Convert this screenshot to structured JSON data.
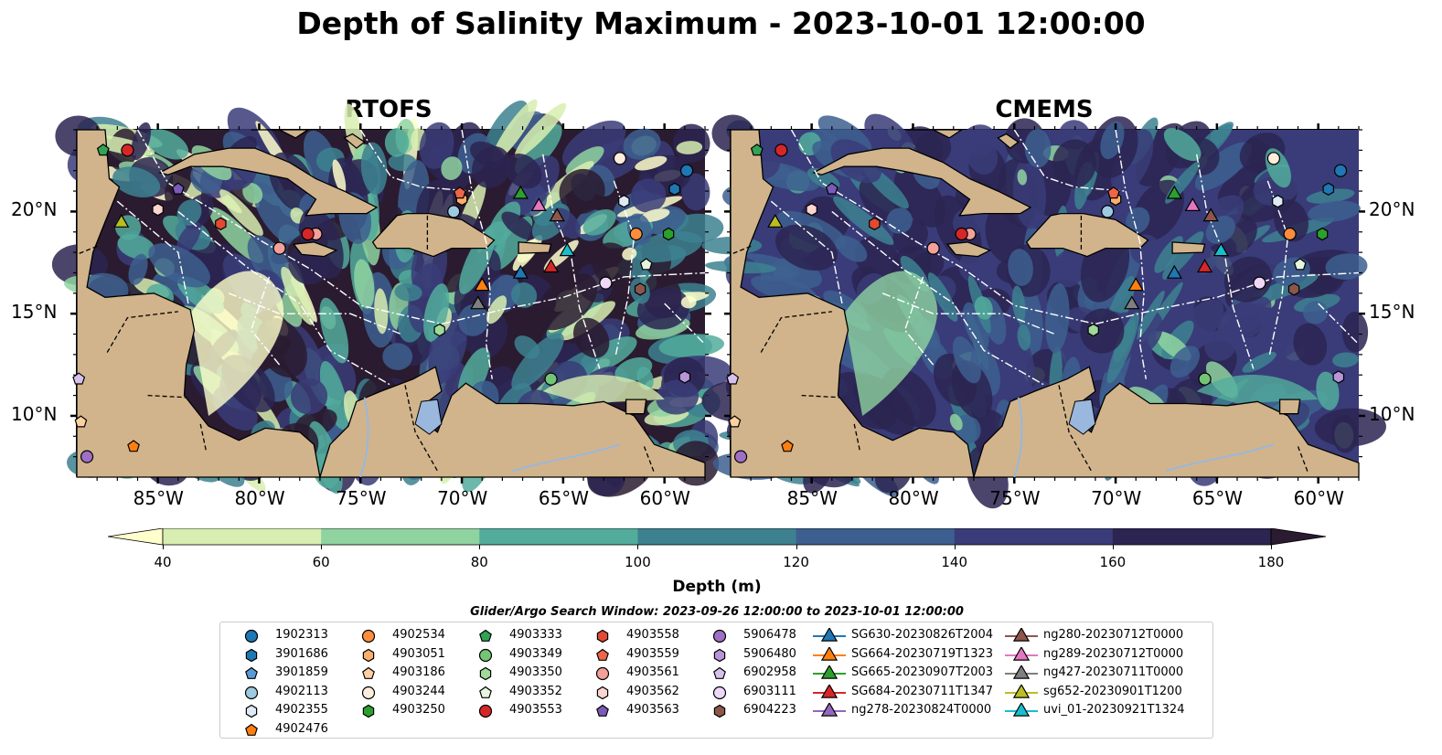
{
  "title": "Depth of Salinity Maximum - 2023-10-01 12:00:00",
  "panels": [
    {
      "name": "RTOFS",
      "lon_labels": [
        "85°W",
        "80°W",
        "75°W",
        "70°W",
        "65°W",
        "60°W"
      ],
      "lat_labels": [
        "20°N",
        "15°N",
        "10°N"
      ],
      "lat_side": "left"
    },
    {
      "name": "CMEMS",
      "lon_labels": [
        "85°W",
        "80°W",
        "75°W",
        "70°W",
        "65°W",
        "60°W"
      ],
      "lat_labels": [
        "20°N",
        "15°N",
        "10°N"
      ],
      "lat_side": "right"
    }
  ],
  "map_extent": {
    "lon": [
      -89,
      -58
    ],
    "lat": [
      7,
      24
    ]
  },
  "colorbar": {
    "label": "Depth (m)",
    "ticks": [
      "40",
      "60",
      "80",
      "100",
      "120",
      "140",
      "160",
      "180"
    ],
    "bins": [
      {
        "range": [
          40,
          60
        ],
        "color": "#d8eeb0"
      },
      {
        "range": [
          60,
          80
        ],
        "color": "#8fd3a0"
      },
      {
        "range": [
          80,
          100
        ],
        "color": "#52ac9c"
      },
      {
        "range": [
          100,
          120
        ],
        "color": "#3d8190"
      },
      {
        "range": [
          120,
          140
        ],
        "color": "#3d5f8f"
      },
      {
        "range": [
          140,
          160
        ],
        "color": "#393c78"
      },
      {
        "range": [
          160,
          180
        ],
        "color": "#2c2551"
      }
    ],
    "under_color": "#ffffcc",
    "over_color": "#2a1b30",
    "extend": "both"
  },
  "land_color": "#d1b48c",
  "legend": {
    "title": "Glider/Argo Search Window: 2023-09-26 12:00:00 to 2023-10-01 12:00:00",
    "columns": [
      [
        {
          "label": "1902313",
          "marker": "circle",
          "color": "#1f77b4"
        },
        {
          "label": "3901686",
          "marker": "hexagon",
          "color": "#1f77b4"
        },
        {
          "label": "3901859",
          "marker": "pentagon",
          "color": "#5b9bd5"
        },
        {
          "label": "4902113",
          "marker": "circle",
          "color": "#9ecae1"
        },
        {
          "label": "4902355",
          "marker": "hexagon",
          "color": "#deebf7"
        },
        {
          "label": "4902476",
          "marker": "pentagon",
          "color": "#ff7f0e"
        }
      ],
      [
        {
          "label": "4902534",
          "marker": "circle",
          "color": "#fd8d3c"
        },
        {
          "label": "4903051",
          "marker": "hexagon",
          "color": "#fdae6b"
        },
        {
          "label": "4903186",
          "marker": "pentagon",
          "color": "#fdd0a2"
        },
        {
          "label": "4903244",
          "marker": "circle",
          "color": "#feeddd"
        },
        {
          "label": "4903250",
          "marker": "hexagon",
          "color": "#2ca02c"
        }
      ],
      [
        {
          "label": "4903333",
          "marker": "pentagon",
          "color": "#31a354"
        },
        {
          "label": "4903349",
          "marker": "circle",
          "color": "#74c476"
        },
        {
          "label": "4903350",
          "marker": "hexagon",
          "color": "#a1d99b"
        },
        {
          "label": "4903352",
          "marker": "pentagon",
          "color": "#e5f5e0"
        },
        {
          "label": "4903553",
          "marker": "circle",
          "color": "#d62728"
        }
      ],
      [
        {
          "label": "4903558",
          "marker": "hexagon",
          "color": "#e34a33"
        },
        {
          "label": "4903559",
          "marker": "pentagon",
          "color": "#ef6548"
        },
        {
          "label": "4903561",
          "marker": "circle",
          "color": "#f4a09a"
        },
        {
          "label": "4903562",
          "marker": "hexagon",
          "color": "#fdd5d0"
        },
        {
          "label": "4903563",
          "marker": "pentagon",
          "color": "#7b5ab8"
        }
      ],
      [
        {
          "label": "5906478",
          "marker": "circle",
          "color": "#9e6fc4"
        },
        {
          "label": "5906480",
          "marker": "hexagon",
          "color": "#b894d9"
        },
        {
          "label": "6902958",
          "marker": "pentagon",
          "color": "#d5c1ec"
        },
        {
          "label": "6903111",
          "marker": "circle",
          "color": "#eed7f7"
        },
        {
          "label": "6904223",
          "marker": "hexagon",
          "color": "#8c564b"
        }
      ],
      [
        {
          "label": "SG630-20230826T2004",
          "marker": "triangle",
          "color": "#1f77b4"
        },
        {
          "label": "SG664-20230719T1323",
          "marker": "triangle",
          "color": "#ff7f0e"
        },
        {
          "label": "SG665-20230907T2003",
          "marker": "triangle",
          "color": "#2ca02c"
        },
        {
          "label": "SG684-20230711T1347",
          "marker": "triangle",
          "color": "#d62728"
        },
        {
          "label": "ng278-20230824T0000",
          "marker": "triangle",
          "color": "#9467bd"
        }
      ],
      [
        {
          "label": "ng280-20230712T0000",
          "marker": "triangle",
          "color": "#8c564b"
        },
        {
          "label": "ng289-20230712T0000",
          "marker": "triangle",
          "color": "#e377c2"
        },
        {
          "label": "ng427-20230711T0000",
          "marker": "triangle",
          "color": "#7f7f7f"
        },
        {
          "label": "sg652-20230901T1200",
          "marker": "triangle",
          "color": "#bcbd22"
        },
        {
          "label": "uvi_01-20230921T1324",
          "marker": "triangle",
          "color": "#17becf"
        }
      ]
    ]
  }
}
